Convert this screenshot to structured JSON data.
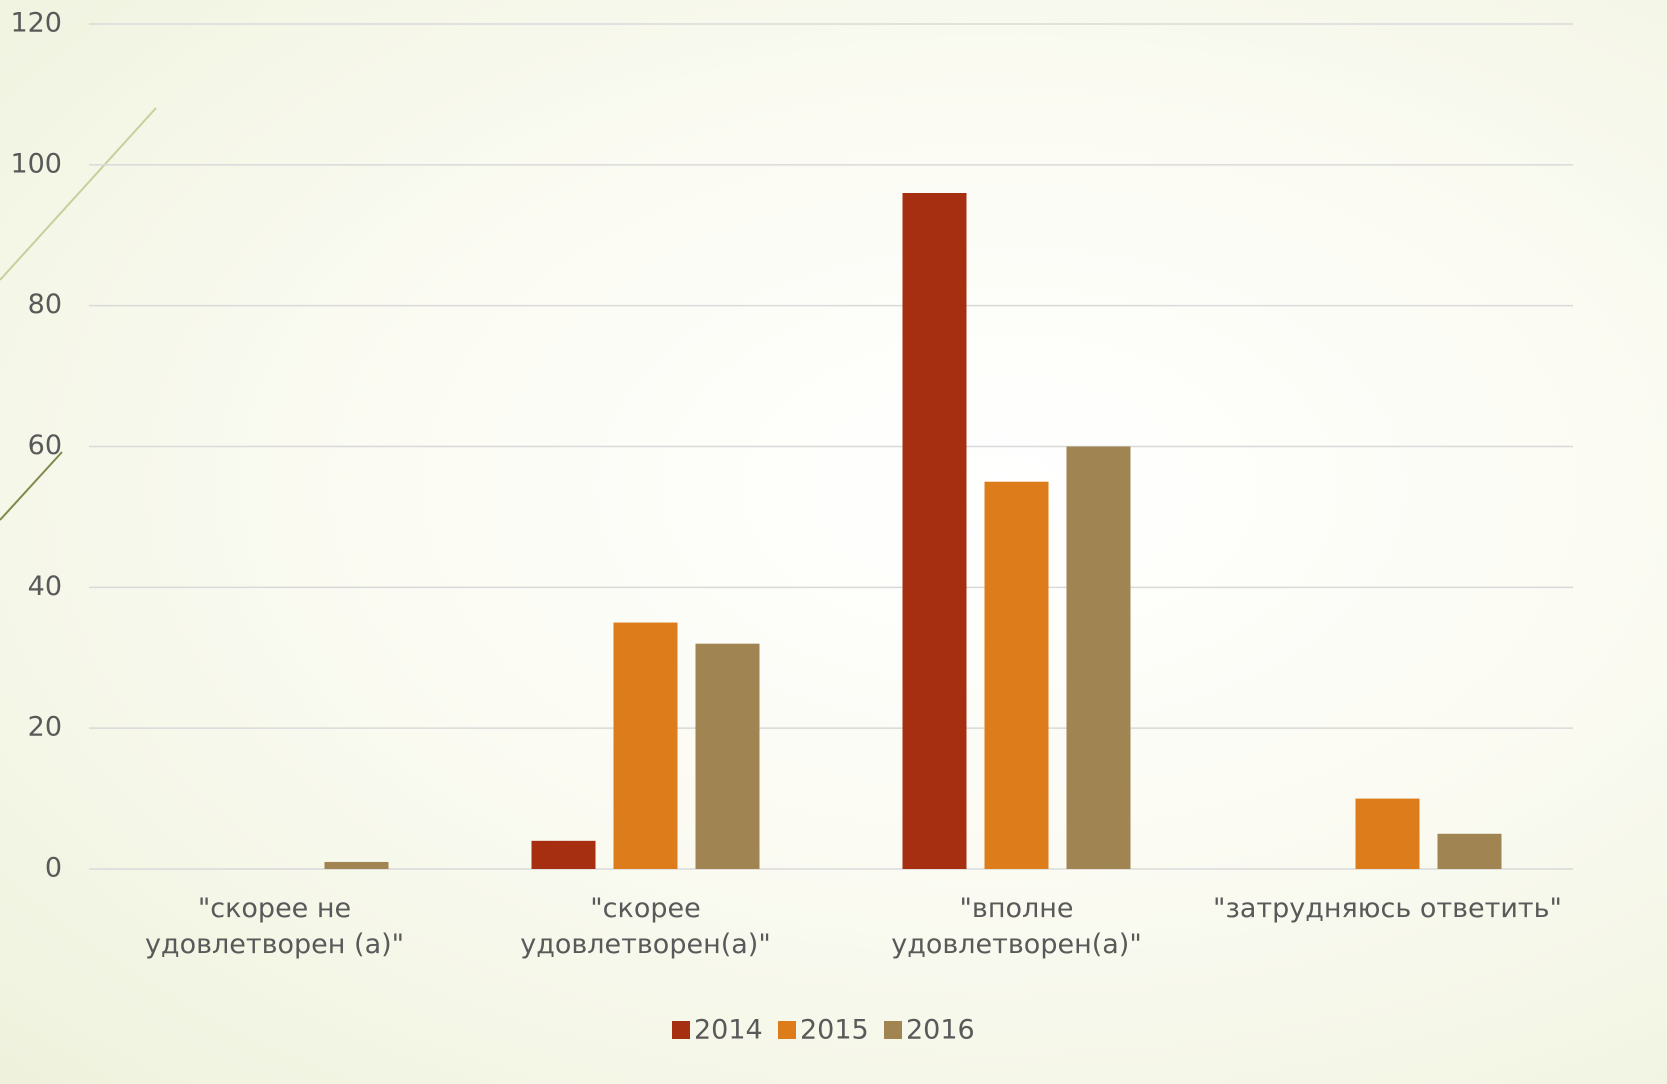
{
  "chart_data": {
    "type": "bar",
    "categories": [
      "\"скорее не\nудовлетворен (а)\"",
      "\"скорее\nудовлетворен(а)\"",
      "\"вполне\nудовлетворен(а)\"",
      "\"затрудняюсь ответить\""
    ],
    "series": [
      {
        "name": "2014",
        "color": "#a52f10",
        "values": [
          0,
          4,
          96,
          0
        ]
      },
      {
        "name": "2015",
        "color": "#dd7c1a",
        "values": [
          0,
          35,
          55,
          10
        ]
      },
      {
        "name": "2016",
        "color": "#a08452",
        "values": [
          1,
          32,
          60,
          5
        ]
      }
    ],
    "ylim": [
      0,
      120
    ],
    "yticks": [
      0,
      20,
      40,
      60,
      80,
      100,
      120
    ],
    "grid": true,
    "legend": "bottom"
  }
}
